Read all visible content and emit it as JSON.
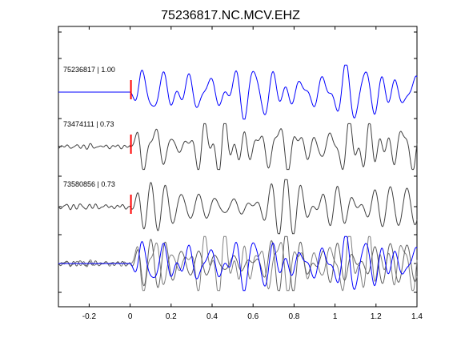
{
  "chart_data": {
    "type": "line",
    "title": "75236817.NC.MCV.EHZ",
    "xlabel": "",
    "ylabel": "",
    "xlim": [
      -0.35,
      1.4
    ],
    "x_ticks": [
      "-0.2",
      "0",
      "0.2",
      "0.4",
      "0.6",
      "0.8",
      "1",
      "1.2",
      "1.4"
    ],
    "grid": false,
    "pick_time": 0.0,
    "pick_color": "#ff0000",
    "traces": [
      {
        "label": "75236817 | 1.00",
        "event_id": "75236817",
        "cc": "1.00",
        "color": "#0000ff",
        "offset": 0
      },
      {
        "label": "73474111 | 0.73",
        "event_id": "73474111",
        "cc": "0.73",
        "color": "#404040",
        "offset": 1
      },
      {
        "label": "73580856 | 0.73",
        "event_id": "73580856",
        "cc": "0.73",
        "color": "#404040",
        "offset": 2
      }
    ],
    "stack": {
      "offset": 3,
      "series": [
        {
          "ref": "73474111",
          "color": "#808080"
        },
        {
          "ref": "73580856",
          "color": "#606060"
        },
        {
          "ref": "75236817",
          "color": "#0000ff"
        }
      ]
    }
  }
}
